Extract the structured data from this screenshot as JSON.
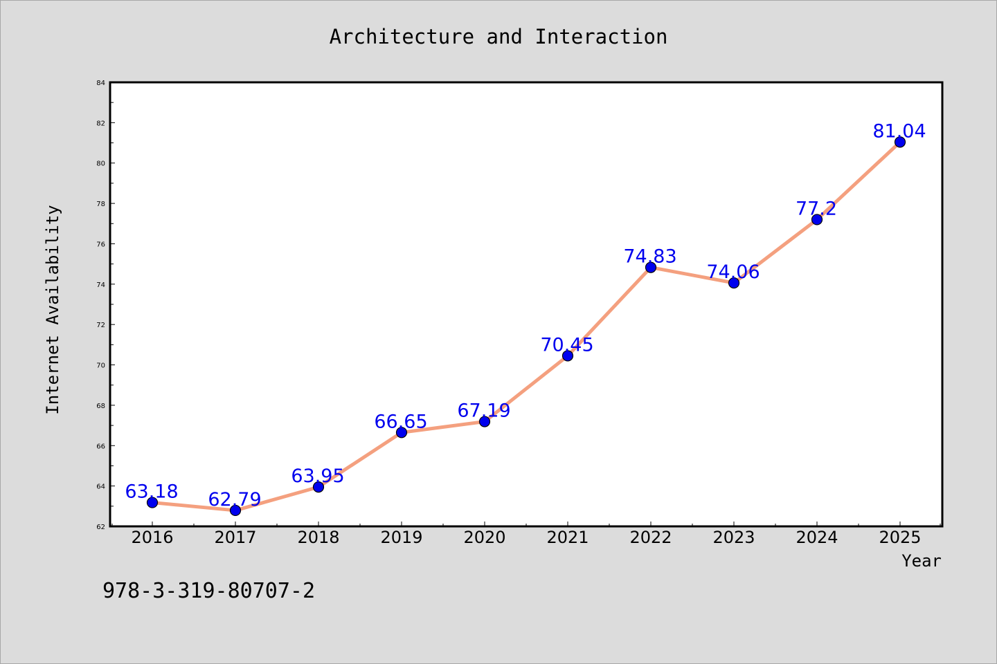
{
  "chart_data": {
    "type": "line",
    "title": "Architecture and Interaction",
    "xlabel": "Year",
    "ylabel": "Internet Availability",
    "x": [
      "2016",
      "2017",
      "2018",
      "2019",
      "2020",
      "2021",
      "2022",
      "2023",
      "2024",
      "2025"
    ],
    "series": [
      {
        "values": [
          63.18,
          62.79,
          63.95,
          66.65,
          67.19,
          70.45,
          74.83,
          74.06,
          77.2,
          81.04
        ],
        "data_labels": [
          "63.18",
          "62.79",
          "63.95",
          "66.65",
          "67.19",
          "70.45",
          "74.83",
          "74.06",
          "77.2",
          "81.04"
        ],
        "line_color": "#f4a07f",
        "marker_color": "#0000ee",
        "label_color": "#0000ee"
      }
    ],
    "ylim": [
      62,
      84
    ],
    "yticks": [
      62,
      64,
      66,
      68,
      70,
      72,
      74,
      76,
      78,
      80,
      82,
      84
    ],
    "ytick_labels": [
      "62",
      "64",
      "66",
      "68",
      "70",
      "72",
      "74",
      "76",
      "78",
      "80",
      "82",
      "84"
    ],
    "grid": false,
    "legend": "none",
    "background_color": "#dcdcdc",
    "plot_background_color": "#ffffff"
  },
  "footer_text": "978-3-319-80707-2"
}
